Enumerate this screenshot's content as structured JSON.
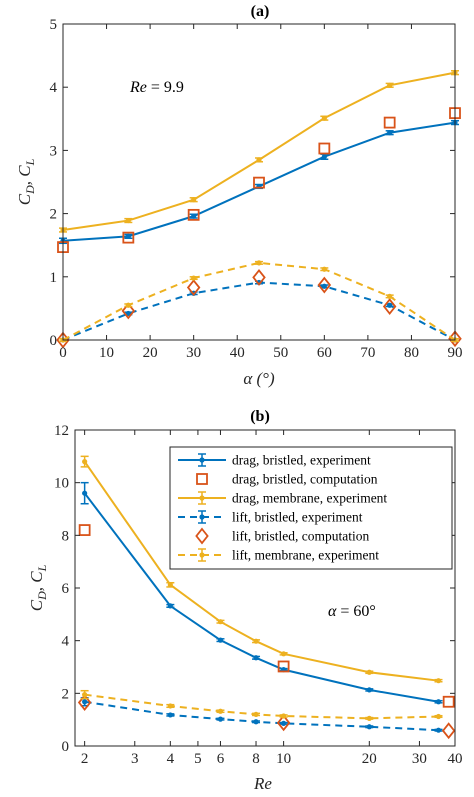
{
  "colors": {
    "blue": "#0072BD",
    "orange": "#D95319",
    "yellow": "#EDB120",
    "axis": "#262626"
  },
  "chart_data": [
    {
      "panel_label": "(a)",
      "type": "line",
      "xlabel": "α (°)",
      "ylabel_main": "C",
      "ylabel_sub1": "D",
      "ylabel_mid": ", C",
      "ylabel_sub2": "L",
      "annotation_prefix": "Re",
      "annotation_value": " = 9.9",
      "x_scale": "linear",
      "xlim": [
        0,
        90
      ],
      "ylim": [
        0,
        5
      ],
      "xticks": [
        0,
        10,
        20,
        30,
        40,
        50,
        60,
        70,
        80,
        90
      ],
      "xtick_labels": [
        "0",
        "10",
        "20",
        "30",
        "40",
        "50",
        "60",
        "70",
        "80",
        "90"
      ],
      "yticks": [
        0,
        1,
        2,
        3,
        4,
        5
      ],
      "ytick_labels": [
        "0",
        "1",
        "2",
        "3",
        "4",
        "5"
      ],
      "grid": false,
      "legend": "none",
      "series": [
        {
          "key": "drag_bristled_exp",
          "x": [
            0,
            15,
            30,
            45,
            60,
            75,
            90
          ],
          "values": [
            1.57,
            1.64,
            1.96,
            2.43,
            2.9,
            3.28,
            3.44
          ],
          "style": "solid",
          "marker": "dot",
          "color": "#0072BD",
          "err": [
            0.04,
            0.03,
            0.03,
            0.03,
            0.04,
            0.03,
            0.03
          ]
        },
        {
          "key": "drag_bristled_comp",
          "x": [
            0,
            15,
            30,
            45,
            60,
            75,
            90
          ],
          "values": [
            1.47,
            1.62,
            1.98,
            2.49,
            3.03,
            3.44,
            3.59
          ],
          "style": "none",
          "marker": "square",
          "color": "#D95319"
        },
        {
          "key": "drag_membrane_exp",
          "x": [
            0,
            15,
            30,
            45,
            60,
            75,
            90
          ],
          "values": [
            1.74,
            1.89,
            2.22,
            2.85,
            3.51,
            4.03,
            4.23
          ],
          "style": "solid",
          "marker": "dot",
          "color": "#EDB120",
          "err": [
            0.03,
            0.03,
            0.03,
            0.03,
            0.03,
            0.03,
            0.03
          ]
        },
        {
          "key": "lift_bristled_exp",
          "x": [
            0,
            15,
            30,
            45,
            60,
            75,
            90
          ],
          "values": [
            0.0,
            0.42,
            0.74,
            0.91,
            0.85,
            0.55,
            0.0
          ],
          "style": "dashed",
          "marker": "dot",
          "color": "#0072BD",
          "err": [
            0.02,
            0.02,
            0.02,
            0.02,
            0.02,
            0.02,
            0.02
          ]
        },
        {
          "key": "lift_bristled_comp",
          "x": [
            0,
            15,
            30,
            45,
            60,
            75,
            90
          ],
          "values": [
            0.0,
            0.46,
            0.83,
            0.99,
            0.87,
            0.53,
            0.02
          ],
          "style": "none",
          "marker": "diamond",
          "color": "#D95319"
        },
        {
          "key": "lift_membrane_exp",
          "x": [
            0,
            15,
            30,
            45,
            60,
            75,
            90
          ],
          "values": [
            0.0,
            0.55,
            0.98,
            1.22,
            1.12,
            0.69,
            0.0
          ],
          "style": "dashed",
          "marker": "dot",
          "color": "#EDB120",
          "err": [
            0.02,
            0.02,
            0.02,
            0.02,
            0.02,
            0.02,
            0.02
          ]
        }
      ]
    },
    {
      "panel_label": "(b)",
      "type": "line",
      "xlabel": "Re",
      "ylabel_main": "C",
      "ylabel_sub1": "D",
      "ylabel_mid": ", C",
      "ylabel_sub2": "L",
      "annotation_prefix": "α",
      "annotation_value": " = 60°",
      "x_scale": "log",
      "xlim": [
        1.85,
        40
      ],
      "ylim": [
        0,
        12
      ],
      "xticks": [
        2,
        3,
        4,
        5,
        6,
        8,
        10,
        20,
        30,
        40
      ],
      "xtick_labels": [
        "2",
        "3",
        "4",
        "5",
        "6",
        "8",
        "10",
        "20",
        "30",
        "40"
      ],
      "yticks": [
        0,
        2,
        4,
        6,
        8,
        10,
        12
      ],
      "ytick_labels": [
        "0",
        "2",
        "4",
        "6",
        "8",
        "10",
        "12"
      ],
      "grid": false,
      "legend": "top-right",
      "legend_entries": [
        {
          "label": "drag, bristled, experiment",
          "series": "drag_bristled_exp"
        },
        {
          "label": "drag, bristled, computation",
          "series": "drag_bristled_comp"
        },
        {
          "label": "drag, membrane, experiment",
          "series": "drag_membrane_exp"
        },
        {
          "label": "lift, bristled, experiment",
          "series": "lift_bristled_exp"
        },
        {
          "label": "lift, bristled, computation",
          "series": "lift_bristled_comp"
        },
        {
          "label": "lift, membrane, experiment",
          "series": "lift_membrane_exp"
        }
      ],
      "series": [
        {
          "key": "drag_bristled_exp",
          "x": [
            2,
            4,
            6,
            8,
            10,
            20,
            35
          ],
          "values": [
            9.6,
            5.32,
            4.02,
            3.35,
            2.9,
            2.13,
            1.68
          ],
          "style": "solid",
          "marker": "dot",
          "color": "#0072BD",
          "err": [
            0.4,
            0.05,
            0.05,
            0.05,
            0.04,
            0.04,
            0.04
          ]
        },
        {
          "key": "drag_bristled_comp",
          "x": [
            2,
            10,
            38
          ],
          "values": [
            8.2,
            3.02,
            1.68
          ],
          "style": "none",
          "marker": "square",
          "color": "#D95319"
        },
        {
          "key": "drag_membrane_exp",
          "x": [
            2,
            4,
            6,
            8,
            10,
            20,
            35
          ],
          "values": [
            10.8,
            6.12,
            4.72,
            3.98,
            3.5,
            2.8,
            2.48
          ],
          "style": "solid",
          "marker": "dot",
          "color": "#EDB120",
          "err": [
            0.2,
            0.08,
            0.05,
            0.05,
            0.04,
            0.04,
            0.04
          ]
        },
        {
          "key": "lift_bristled_exp",
          "x": [
            2,
            4,
            6,
            8,
            10,
            20,
            35
          ],
          "values": [
            1.68,
            1.18,
            1.02,
            0.92,
            0.86,
            0.73,
            0.6
          ],
          "style": "dashed",
          "marker": "dot",
          "color": "#0072BD",
          "err": [
            0.15,
            0.04,
            0.03,
            0.03,
            0.03,
            0.03,
            0.03
          ]
        },
        {
          "key": "lift_bristled_comp",
          "x": [
            2,
            10,
            38
          ],
          "values": [
            1.65,
            0.88,
            0.58
          ],
          "style": "none",
          "marker": "diamond",
          "color": "#D95319"
        },
        {
          "key": "lift_membrane_exp",
          "x": [
            2,
            4,
            6,
            8,
            10,
            20,
            35
          ],
          "values": [
            1.95,
            1.52,
            1.32,
            1.2,
            1.14,
            1.05,
            1.12
          ],
          "style": "dashed",
          "marker": "dot",
          "color": "#EDB120",
          "err": [
            0.15,
            0.05,
            0.04,
            0.04,
            0.04,
            0.03,
            0.03
          ]
        }
      ]
    }
  ]
}
